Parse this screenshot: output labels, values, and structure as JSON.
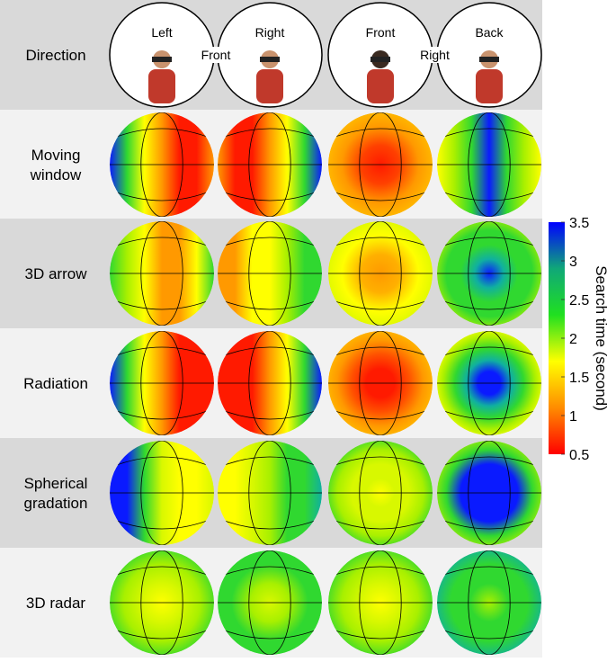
{
  "header": {
    "row_label": "Direction",
    "pairs": [
      {
        "left": "Left",
        "middle": "Front",
        "right": "Right"
      },
      {
        "left": "Front",
        "middle": "Right",
        "right": "Back"
      }
    ]
  },
  "rows": [
    {
      "label": [
        "Moving",
        "window"
      ]
    },
    {
      "label": [
        "3D arrow"
      ]
    },
    {
      "label": [
        "Radiation"
      ]
    },
    {
      "label": [
        "Spherical",
        "gradation"
      ]
    },
    {
      "label": [
        "3D radar"
      ]
    }
  ],
  "colorbar": {
    "label": "Search time (second)",
    "lim": [
      0.5,
      3.5
    ],
    "ticks": [
      0.5,
      1,
      1.5,
      2,
      2.5,
      3,
      3.5
    ],
    "colors": [
      "#ff0000",
      "#ff8c00",
      "#ffff00",
      "#20e020",
      "#10a878",
      "#0000ff"
    ]
  }
}
